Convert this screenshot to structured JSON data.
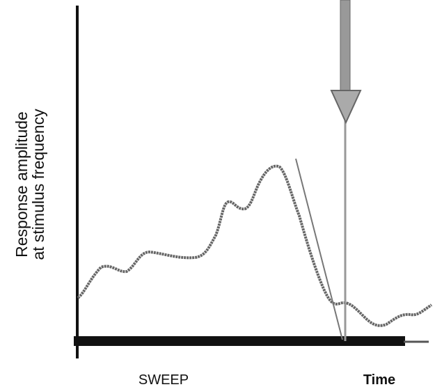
{
  "y_axis_label": [
    "Response amplitude",
    "at stimulus frequency"
  ],
  "x_axis_label": "SWEEP",
  "time_label": "Time"
}
